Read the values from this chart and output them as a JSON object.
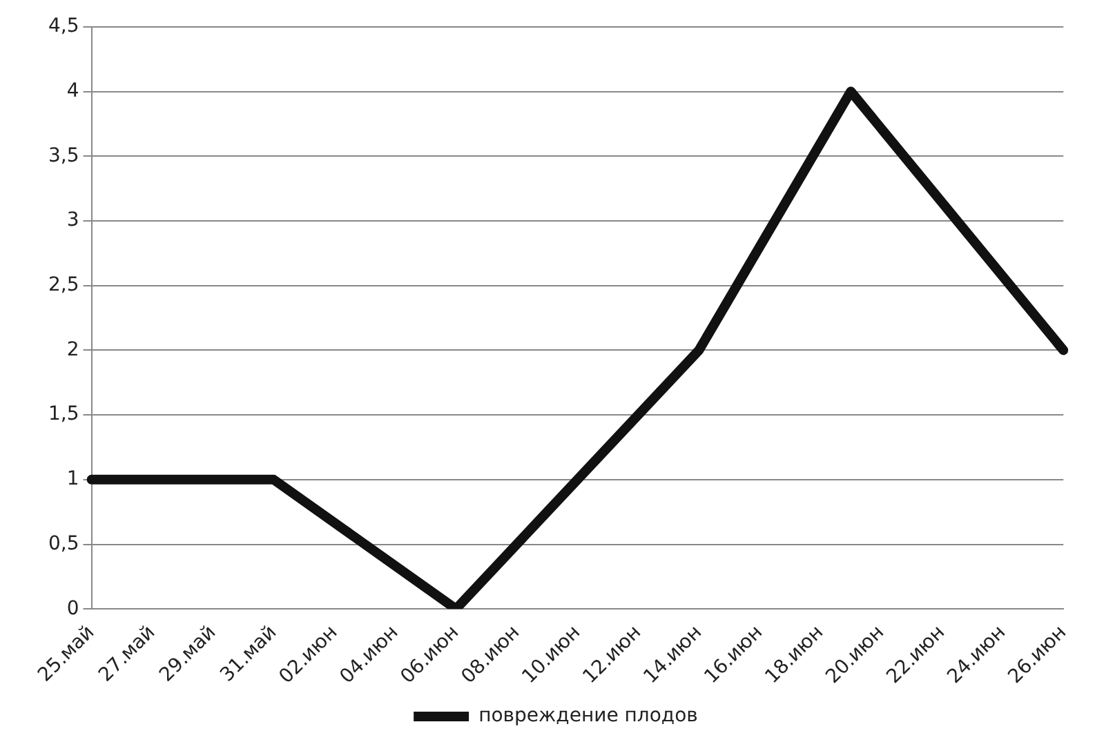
{
  "chart_data": {
    "type": "line",
    "categories": [
      "25.май",
      null,
      "27.май",
      null,
      "29.май",
      null,
      "31.май",
      null,
      "02.июн",
      null,
      "04.июн",
      null,
      "06.июн",
      null,
      "08.июн",
      null,
      "10.июн",
      null,
      "12.июн",
      null,
      "14.июн",
      null,
      "16.июн",
      null,
      "18.июн",
      null,
      "20.июн",
      null,
      "22.июн",
      null,
      "24.июн",
      null,
      "26.июн"
    ],
    "series": [
      {
        "name": "повреждение плодов",
        "color": "#111111",
        "values": [
          1,
          null,
          null,
          null,
          null,
          null,
          1,
          null,
          null,
          null,
          null,
          null,
          0,
          null,
          null,
          null,
          null,
          null,
          null,
          null,
          2,
          null,
          null,
          null,
          null,
          4,
          null,
          null,
          null,
          null,
          null,
          null,
          2
        ]
      }
    ],
    "ylim": [
      0,
      4.5
    ],
    "yticks": [
      0,
      {
        "value": 0.5,
        "label": "0,5"
      },
      1,
      {
        "value": 1.5,
        "label": "1,5"
      },
      2,
      {
        "value": 2.5,
        "label": "2,5"
      },
      3,
      {
        "value": 3.5,
        "label": "3,5"
      },
      4,
      {
        "value": 4.5,
        "label": "4,5"
      }
    ],
    "grid": "y",
    "legend": "bottom",
    "marker": "none",
    "line_style": "solid"
  }
}
